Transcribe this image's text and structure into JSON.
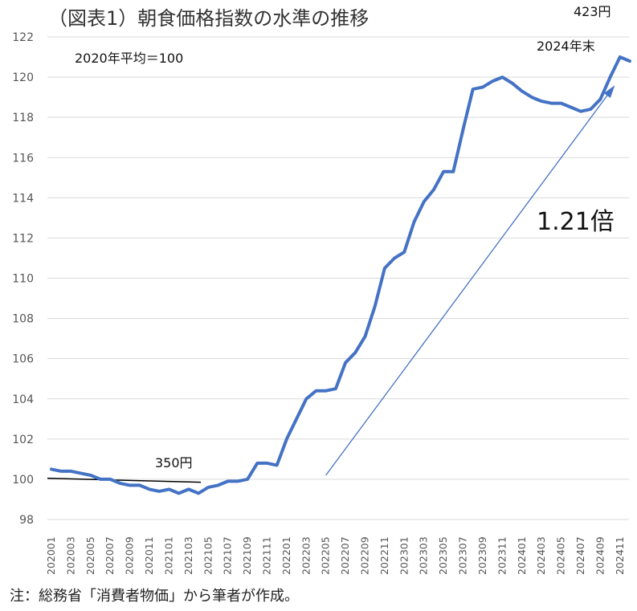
{
  "chart_data": {
    "type": "line",
    "title": "（図表1）朝食価格指数の水準の推移",
    "xlabel": "",
    "ylabel": "",
    "ylim": [
      98,
      122
    ],
    "yticks": [
      98,
      100,
      102,
      104,
      106,
      108,
      110,
      112,
      114,
      116,
      118,
      120,
      122
    ],
    "grid": true,
    "legend": "none",
    "x": [
      "202001",
      "202002",
      "202003",
      "202004",
      "202005",
      "202006",
      "202007",
      "202008",
      "202009",
      "202010",
      "202011",
      "202012",
      "202101",
      "202102",
      "202103",
      "202104",
      "202105",
      "202106",
      "202107",
      "202108",
      "202109",
      "202110",
      "202111",
      "202112",
      "202201",
      "202202",
      "202203",
      "202204",
      "202205",
      "202206",
      "202207",
      "202208",
      "202209",
      "202210",
      "202211",
      "202212",
      "202301",
      "202302",
      "202303",
      "202304",
      "202305",
      "202306",
      "202307",
      "202308",
      "202309",
      "202310",
      "202311",
      "202312",
      "202401",
      "202402",
      "202403",
      "202404",
      "202405",
      "202406",
      "202407",
      "202408",
      "202409",
      "202410",
      "202411",
      "202412"
    ],
    "x_tick_labels": [
      "202001",
      "202003",
      "202005",
      "202007",
      "202009",
      "202011",
      "202101",
      "202103",
      "202105",
      "202107",
      "202109",
      "202111",
      "202201",
      "202203",
      "202205",
      "202207",
      "202209",
      "202211",
      "202301",
      "202303",
      "202305",
      "202307",
      "202309",
      "202311",
      "202401",
      "202403",
      "202405",
      "202407",
      "202409",
      "202411"
    ],
    "series": [
      {
        "values": [
          100.5,
          100.4,
          100.4,
          100.3,
          100.2,
          100.0,
          100.0,
          99.8,
          99.7,
          99.7,
          99.5,
          99.4,
          99.5,
          99.3,
          99.5,
          99.3,
          99.6,
          99.7,
          99.9,
          99.9,
          100.0,
          100.8,
          100.8,
          100.7,
          102.0,
          103.0,
          104.0,
          104.4,
          104.4,
          104.5,
          105.8,
          106.3,
          107.1,
          108.6,
          110.5,
          111.0,
          111.3,
          112.8,
          113.8,
          114.4,
          115.3,
          115.3,
          117.4,
          119.4,
          119.5,
          119.8,
          120.0,
          119.7,
          119.3,
          119.0,
          118.8,
          118.7,
          118.7,
          118.5,
          118.3,
          118.4,
          118.9,
          120.0,
          121.0,
          120.8
        ],
        "color": "#4472C4"
      }
    ],
    "annotations": {
      "base_note": "2020年平均＝100",
      "start_price": "350円",
      "end_price": "423円",
      "end_label": "2024年末",
      "ratio": "1.21倍"
    },
    "colors": {
      "line": "#4472C4",
      "arrow": "#4472C4",
      "grid": "#d9d9d9",
      "baseline": "#000000"
    }
  },
  "footnote": "注：総務省「消費者物価」から筆者が作成。"
}
